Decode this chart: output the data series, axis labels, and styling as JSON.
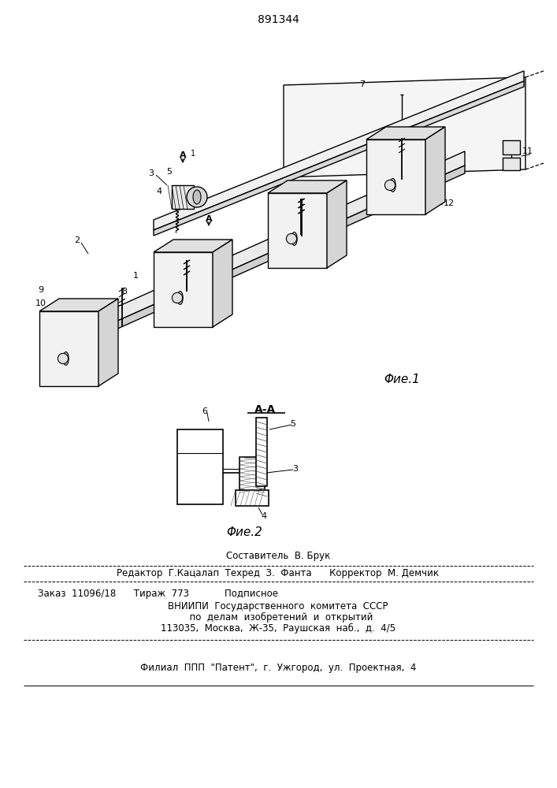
{
  "patent_number": "891344",
  "fig1_label": "Φие.1",
  "fig2_label": "Φие.2",
  "section_label": "A-A",
  "background_color": "#ffffff",
  "line_color": "#000000",
  "label_1": "1",
  "label_2": "2",
  "label_3": "3",
  "label_4": "4",
  "label_5": "5",
  "label_6": "6",
  "label_7": "7",
  "label_8": "8",
  "label_9": "9",
  "label_10": "10",
  "label_11": "11",
  "label_12": "12",
  "footer_line1": "Составитель  В. Брук",
  "footer_line2": "Редактор  Г.Кацалап  Техред  З.  Фанта      Корректор  М. Демчик",
  "footer_line3": "Заказ  11096/18      Тираж  773            Подписное",
  "footer_line4": "ВНИИПИ  Государственного  комитета  СССР",
  "footer_line5": "  по  делам  изобретений  и  открытий",
  "footer_line6": "113035,  Москва,  Ж-35,  Раушская  наб.,  д.  4/5",
  "footer_line7": "Филиал  ППП  \"Патент\",  г.  Ужгород,  ул.  Проектная,  4"
}
